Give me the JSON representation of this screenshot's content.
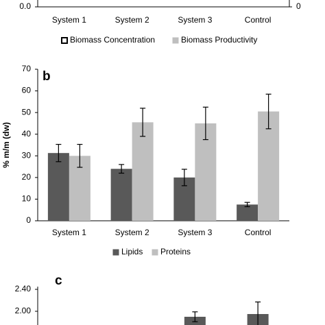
{
  "chart_data": [
    {
      "type": "bar",
      "categories": [
        "System 1",
        "System 2",
        "System 3",
        "Control"
      ],
      "series": [
        {
          "name": "Biomass Concentration",
          "color": "#ffffff"
        },
        {
          "name": "Biomass Productivity",
          "color": "#bfbfbf"
        }
      ],
      "yticks": [
        {
          "value": 0,
          "label": "0.0"
        }
      ],
      "y2ticks": [
        0
      ]
    },
    {
      "type": "bar",
      "panel": "b",
      "ylabel": "% m/m (dw)",
      "categories": [
        "System 1",
        "System 2",
        "System 3",
        "Control"
      ],
      "series": [
        {
          "name": "Lipids",
          "color": "#595959",
          "values": [
            31.3,
            24,
            20,
            7.5
          ],
          "errors": [
            4,
            2,
            3.8,
            1
          ]
        },
        {
          "name": "Proteins",
          "color": "#bfbfbf",
          "values": [
            30,
            45.5,
            45,
            50.5
          ],
          "errors": [
            5.3,
            6.5,
            7.5,
            8
          ]
        }
      ],
      "ylim": [
        0,
        70
      ],
      "yticks": [
        0,
        10,
        20,
        30,
        40,
        50,
        60,
        70
      ]
    },
    {
      "type": "bar",
      "panel": "c",
      "categories": [
        null,
        null,
        null,
        null
      ],
      "series": [
        {
          "color": "#595959",
          "values": [
            null,
            null,
            1.9,
            1.95
          ],
          "errors": [
            null,
            null,
            0.09,
            0.22
          ]
        }
      ],
      "ylim": [
        1.75,
        2.45
      ],
      "yticks": [
        {
          "value": 2.4,
          "label": "2.40"
        },
        {
          "value": 2,
          "label": "2.00"
        }
      ]
    }
  ]
}
